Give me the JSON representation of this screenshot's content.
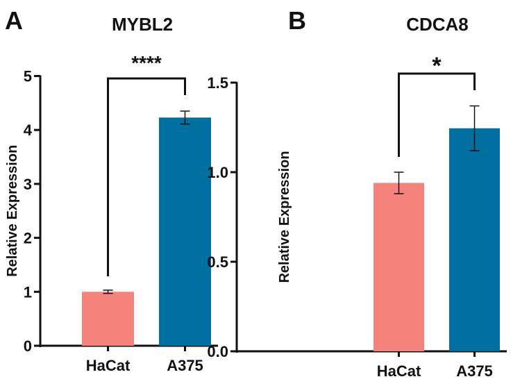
{
  "chart_data": [
    {
      "type": "bar",
      "panel_label": "A",
      "title": "MYBL2",
      "ylabel": "Relative Expression",
      "xlabel": "",
      "categories": [
        "HaCat",
        "A375"
      ],
      "values": [
        1.0,
        4.23
      ],
      "errors": [
        0.03,
        0.12
      ],
      "colors": [
        "#F4837D",
        "#0070A0"
      ],
      "ylim": [
        0,
        5
      ],
      "yticks": [
        "0",
        "1",
        "2",
        "3",
        "4",
        "5"
      ],
      "significance": "****",
      "grid": false
    },
    {
      "type": "bar",
      "panel_label": "B",
      "title": "CDCA8",
      "ylabel": "Relative Expression",
      "xlabel": "",
      "categories": [
        "HaCat",
        "A375"
      ],
      "values": [
        0.94,
        1.245
      ],
      "errors": [
        0.06,
        0.125
      ],
      "colors": [
        "#F4837D",
        "#0070A0"
      ],
      "ylim": [
        0,
        1.5
      ],
      "yticks": [
        "0.0",
        "0.5",
        "1.0",
        "1.5"
      ],
      "significance": "*",
      "grid": false
    }
  ]
}
